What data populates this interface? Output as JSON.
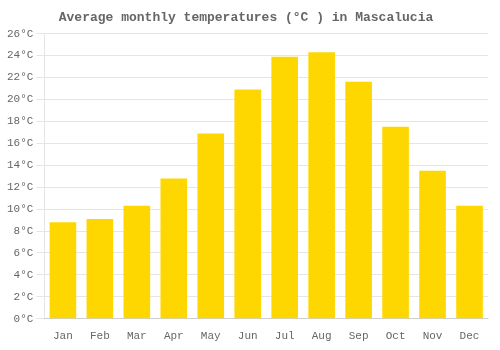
{
  "chart_data": {
    "type": "bar",
    "title": "Average monthly temperatures (°C ) in Mascalucia",
    "categories": [
      "Jan",
      "Feb",
      "Mar",
      "Apr",
      "May",
      "Jun",
      "Jul",
      "Aug",
      "Sep",
      "Oct",
      "Nov",
      "Dec"
    ],
    "values": [
      8.8,
      9.1,
      10.3,
      12.8,
      16.9,
      20.9,
      23.9,
      24.3,
      21.6,
      17.5,
      13.5,
      10.3
    ],
    "color": "#FFD700",
    "ylim": [
      0,
      26
    ],
    "yticks": [
      {
        "value": 0,
        "label": "0°C"
      },
      {
        "value": 2,
        "label": "2°C"
      },
      {
        "value": 4,
        "label": "4°C"
      },
      {
        "value": 6,
        "label": "6°C"
      },
      {
        "value": 8,
        "label": "8°C"
      },
      {
        "value": 10,
        "label": "10°C"
      },
      {
        "value": 12,
        "label": "12°C"
      },
      {
        "value": 14,
        "label": "14°C"
      },
      {
        "value": 16,
        "label": "16°C"
      },
      {
        "value": 18,
        "label": "18°C"
      },
      {
        "value": 20,
        "label": "20°C"
      },
      {
        "value": 22,
        "label": "22°C"
      },
      {
        "value": 24,
        "label": "24°C"
      },
      {
        "value": 26,
        "label": "26°C"
      }
    ],
    "grid": true
  }
}
